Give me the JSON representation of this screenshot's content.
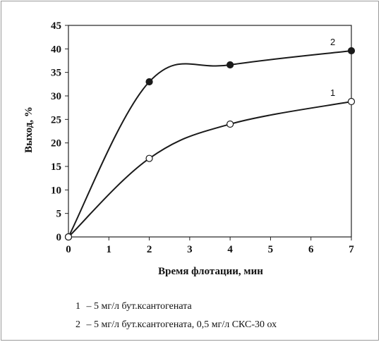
{
  "chart_data": {
    "type": "line",
    "xlabel": "Время флотации, мин",
    "ylabel": "Выход, %",
    "xlim": [
      0,
      7
    ],
    "ylim": [
      0,
      45
    ],
    "x_ticks": [
      "0",
      "1",
      "2",
      "3",
      "4",
      "5",
      "6",
      "7"
    ],
    "y_ticks": [
      "0",
      "5",
      "10",
      "15",
      "20",
      "25",
      "30",
      "35",
      "40",
      "45"
    ],
    "grid": false,
    "series": [
      {
        "name": "1",
        "marker": "open-circle",
        "color": "#1a1a1a",
        "points": [
          [
            0,
            0
          ],
          [
            2,
            16.7
          ],
          [
            4,
            24
          ],
          [
            7,
            28.8
          ]
        ]
      },
      {
        "name": "2",
        "marker": "filled-circle",
        "color": "#1a1a1a",
        "points": [
          [
            0,
            0
          ],
          [
            2,
            33
          ],
          [
            4,
            36.6
          ],
          [
            7,
            39.6
          ]
        ]
      }
    ]
  },
  "legend": [
    {
      "num": "1",
      "text": "– 5 мг/л бут.ксантогената"
    },
    {
      "num": "2",
      "text": "– 5 мг/л бут.ксантогената, 0,5 мг/л СКС-30 ох"
    }
  ]
}
